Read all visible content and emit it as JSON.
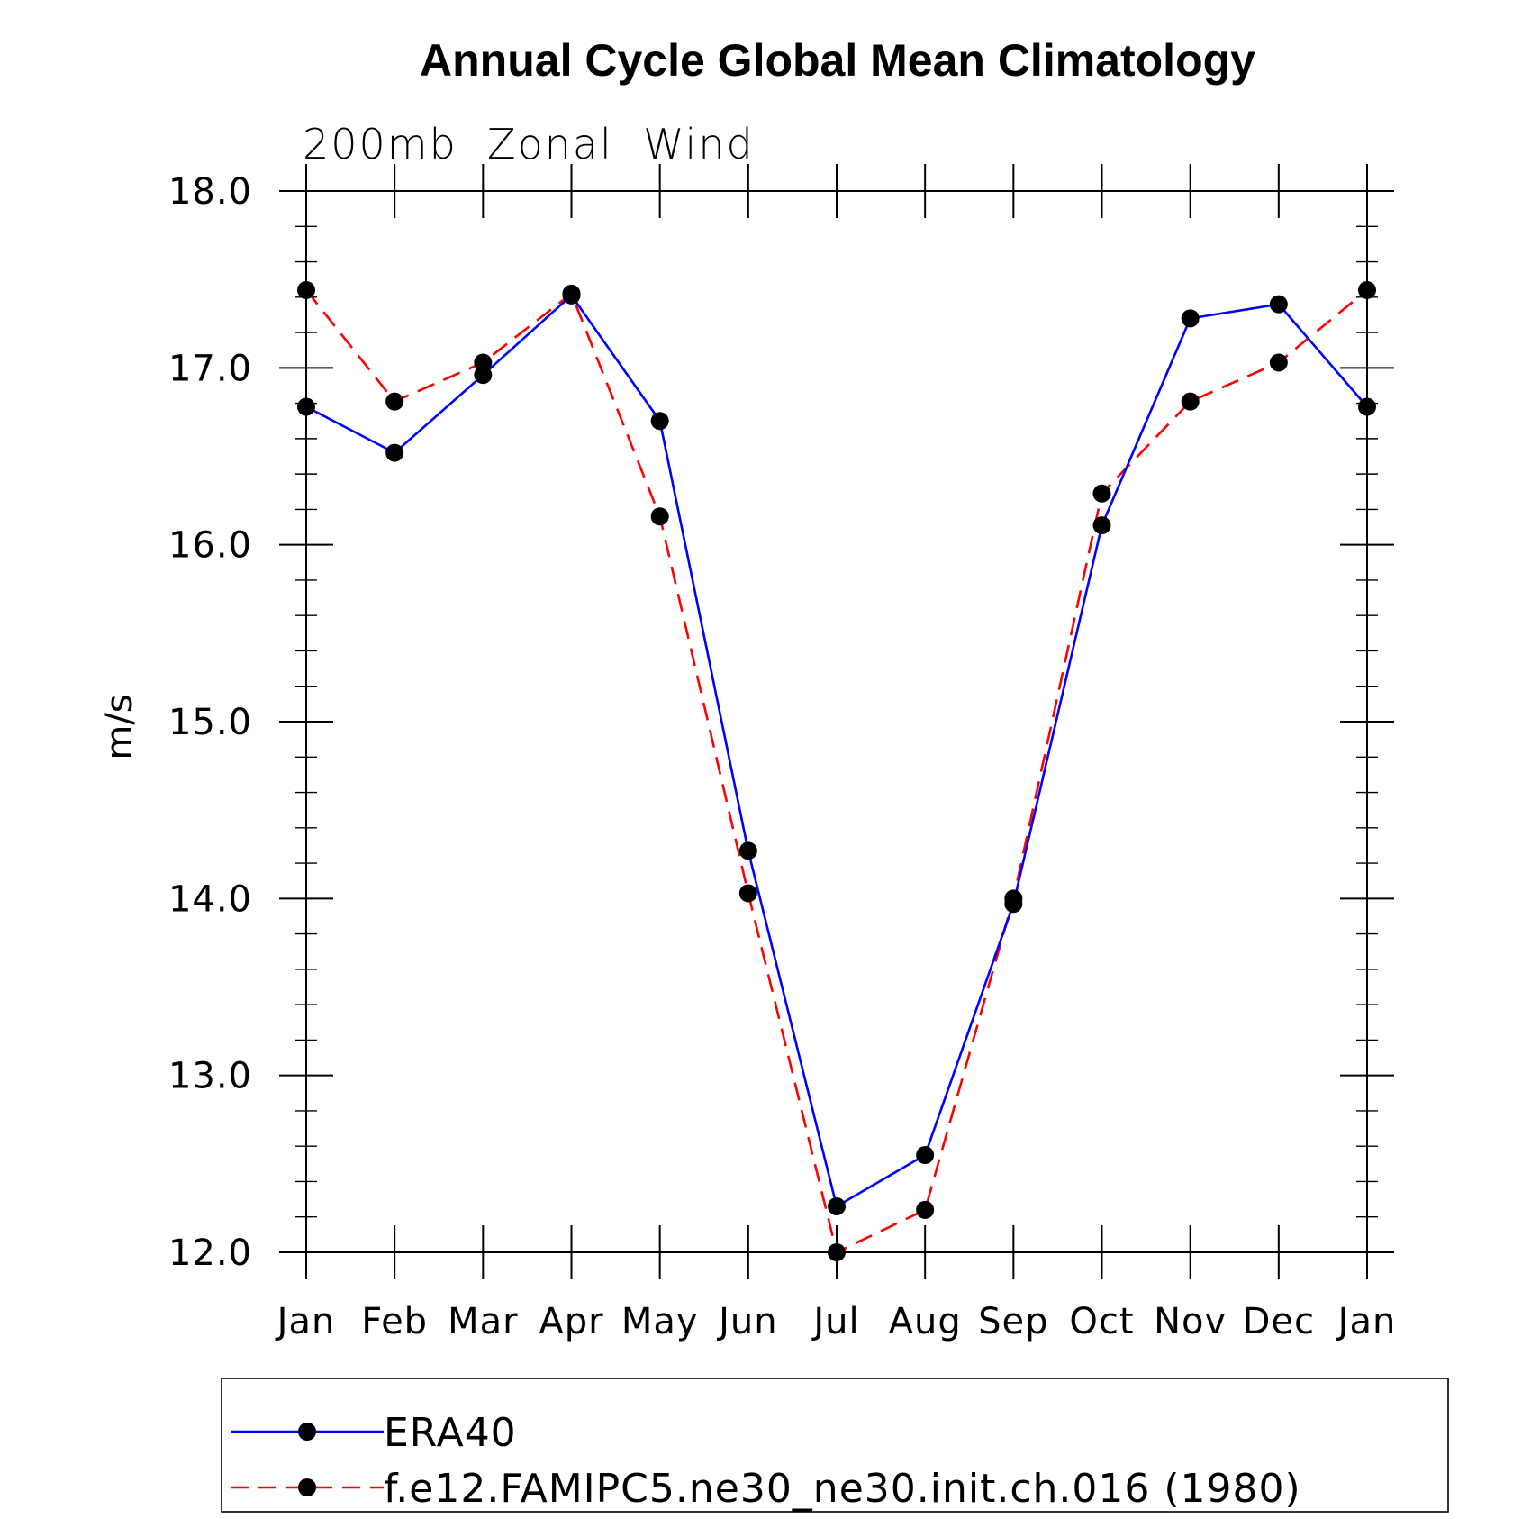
{
  "chart_data": {
    "type": "line",
    "title": "Annual Cycle Global Mean Climatology",
    "subtitle": "200mb  Zonal  Wind",
    "xlabel": "",
    "ylabel": "m/s",
    "categories": [
      "Jan",
      "Feb",
      "Mar",
      "Apr",
      "May",
      "Jun",
      "Jul",
      "Aug",
      "Sep",
      "Oct",
      "Nov",
      "Dec",
      "Jan"
    ],
    "ylim": [
      12.0,
      18.0
    ],
    "yticks": [
      "12.0",
      "13.0",
      "14.0",
      "15.0",
      "16.0",
      "17.0",
      "18.0"
    ],
    "grid": false,
    "legend_position": "bottom",
    "series": [
      {
        "name": "ERA40",
        "color": "#0000ff",
        "line_style": "solid",
        "marker": "filled-circle",
        "values": [
          16.78,
          16.52,
          16.96,
          17.41,
          16.7,
          14.27,
          12.26,
          12.55,
          13.97,
          16.11,
          17.28,
          17.36,
          16.78
        ]
      },
      {
        "name": "f.e12.FAMIPC5.ne30_ne30.init.ch.016 (1980)",
        "color": "#ff0000",
        "line_style": "dashed",
        "marker": "filled-circle",
        "values": [
          17.44,
          16.81,
          17.03,
          17.42,
          16.16,
          14.03,
          12.0,
          12.24,
          14.0,
          16.29,
          16.81,
          17.03,
          17.44
        ]
      }
    ]
  }
}
